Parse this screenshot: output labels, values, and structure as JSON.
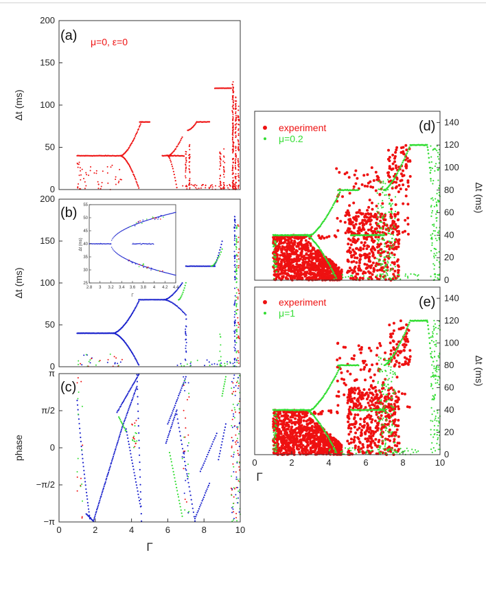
{
  "colors": {
    "red": "#ee1111",
    "green": "#33dd33",
    "blue": "#1a22cc"
  },
  "chart_data": [
    {
      "id": "a",
      "type": "scatter",
      "panel_label": "(a)",
      "annotation": "μ=0, ε=0",
      "xlim": [
        0,
        10
      ],
      "ylim": [
        0,
        200
      ],
      "ylabel": "Δt (ms)",
      "xlabel": "",
      "yticks": [
        0,
        50,
        100,
        150,
        200
      ],
      "ytick_labels": [
        "0",
        "50",
        "100",
        "150",
        "200"
      ],
      "series": [
        {
          "color_key": "red",
          "segments": [
            [
              1.0,
              3.5,
              40,
              40
            ],
            [
              3.5,
              4.4,
              40,
              2
            ],
            [
              3.5,
              4.4,
              40,
              2
            ],
            [
              4.45,
              5.0,
              80,
              80
            ],
            [
              5.7,
              6.9,
              40,
              40
            ],
            [
              6.1,
              6.9,
              42,
              60
            ],
            [
              7.1,
              7.6,
              70,
              80
            ],
            [
              7.6,
              8.3,
              80,
              80
            ],
            [
              8.6,
              9.5,
              120,
              120
            ],
            [
              9.5,
              9.6,
              120,
              125
            ]
          ],
          "vlines": [
            [
              9.6,
              0,
              125
            ],
            [
              9.65,
              0,
              110
            ],
            [
              9.7,
              0,
              100
            ],
            [
              7.2,
              0,
              60
            ],
            [
              8.9,
              0,
              50
            ],
            [
              9.1,
              0,
              45
            ]
          ]
        }
      ]
    },
    {
      "id": "b",
      "type": "scatter",
      "panel_label": "(b)",
      "xlim": [
        0,
        10
      ],
      "ylim": [
        0,
        200
      ],
      "ylabel": "Δt (ms)",
      "xlabel": "",
      "yticks": [
        0,
        50,
        100,
        150,
        200
      ],
      "ytick_labels": [
        "0",
        "50",
        "100",
        "150",
        "200"
      ],
      "series": [
        {
          "color_key": "blue",
          "segments": [
            [
              1.0,
              3.0,
              40,
              40
            ],
            [
              3.0,
              4.4,
              40,
              2
            ],
            [
              3.0,
              4.4,
              40,
              78
            ],
            [
              4.4,
              5.8,
              80,
              80
            ],
            [
              5.8,
              6.9,
              80,
              100
            ],
            [
              6.3,
              7.0,
              80,
              60
            ],
            [
              7.0,
              8.6,
              120,
              120
            ],
            [
              8.6,
              9.0,
              120,
              150
            ]
          ]
        },
        {
          "color_key": "green",
          "segments": [
            [
              6.6,
              7.0,
              80,
              100
            ],
            [
              8.4,
              9.0,
              120,
              150
            ]
          ]
        }
      ],
      "inset": {
        "xlim": [
          2.8,
          4.4
        ],
        "ylim": [
          25,
          55
        ],
        "xticks": [
          2.8,
          3,
          3.2,
          3.4,
          3.6,
          3.8,
          4,
          4.2,
          4.4
        ],
        "xtick_labels": [
          "2.8",
          "3",
          "3.2",
          "3.4",
          "3.6",
          "3.8",
          "4",
          "4.2",
          "4.4"
        ],
        "yticks": [
          25,
          30,
          35,
          40,
          45,
          50,
          55
        ],
        "ytick_labels": [
          "25",
          "30",
          "35",
          "40",
          "45",
          "50",
          "55"
        ],
        "xlabel": "Γ",
        "ylabel": "Δt (ms)"
      }
    },
    {
      "id": "c",
      "type": "scatter",
      "panel_label": "(c)",
      "xlim": [
        0,
        10
      ],
      "ylim": [
        -3.1416,
        3.1416
      ],
      "ylabel": "phase",
      "xlabel": "Γ",
      "yticks": [
        -3.1416,
        -1.5708,
        0,
        1.5708,
        3.1416
      ],
      "ytick_labels": [
        "−π",
        "−π/2",
        "0",
        "π/2",
        "π"
      ],
      "xticks": [
        0,
        2,
        4,
        6,
        8,
        10
      ],
      "xtick_labels": [
        "0",
        "2",
        "4",
        "6",
        "8",
        "10"
      ]
    },
    {
      "id": "d",
      "type": "scatter",
      "panel_label": "(d)",
      "xlim": [
        0,
        10
      ],
      "ylim": [
        0,
        150
      ],
      "ylabel": "Δt (ms)",
      "xlabel": "",
      "yticks": [
        0,
        20,
        40,
        60,
        80,
        100,
        120,
        140
      ],
      "ytick_labels": [
        "0",
        "20",
        "40",
        "60",
        "80",
        "100",
        "120",
        "140"
      ],
      "legend": [
        {
          "label": "experiment",
          "color_key": "red"
        },
        {
          "label": "μ=0.2",
          "color_key": "green"
        }
      ]
    },
    {
      "id": "e",
      "type": "scatter",
      "panel_label": "(e)",
      "xlim": [
        0,
        10
      ],
      "ylim": [
        0,
        150
      ],
      "ylabel": "Δt (ms)",
      "xlabel": "Γ",
      "yticks": [
        0,
        20,
        40,
        60,
        80,
        100,
        120,
        140
      ],
      "ytick_labels": [
        "0",
        "20",
        "40",
        "60",
        "80",
        "100",
        "120",
        "140"
      ],
      "xticks": [
        0,
        2,
        4,
        6,
        8,
        10
      ],
      "xtick_labels": [
        "0",
        "2",
        "4",
        "6",
        "8",
        "10"
      ],
      "legend": [
        {
          "label": "experiment",
          "color_key": "red"
        },
        {
          "label": "μ=1",
          "color_key": "green"
        }
      ]
    }
  ]
}
